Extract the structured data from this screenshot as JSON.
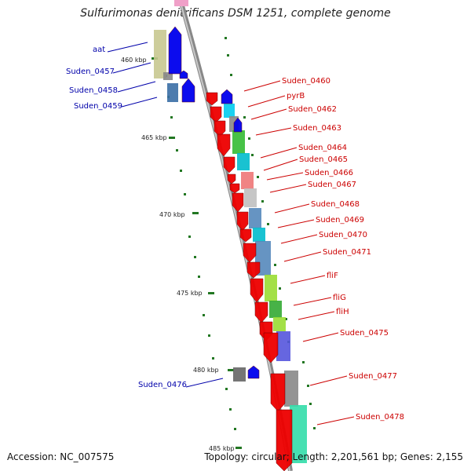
{
  "title": "Sulfurimonas denitrificans DSM 1251, complete genome",
  "footer": {
    "accession": "Accession: NC_007575",
    "summary": "Topology: circular; Length: 2,201,561 bp; Genes: 2,155"
  },
  "colors": {
    "forward_strand_arrow": "#0000ee",
    "reverse_strand_arrow": "#ee0000",
    "forward_label": "#0000aa",
    "reverse_label": "#cc0000",
    "backbone": "#888888",
    "tick": "#227722"
  },
  "scale_labels": [
    "460 kbp",
    "465 kbp",
    "470 kbp",
    "475 kbp",
    "480 kbp",
    "485 kbp"
  ],
  "left_genes": [
    "aat",
    "Suden_0457",
    "Suden_0458",
    "Suden_0459",
    "Suden_0476"
  ],
  "right_genes": [
    "Suden_0460",
    "pyrB",
    "Suden_0462",
    "Suden_0463",
    "Suden_0464",
    "Suden_0465",
    "Suden_0466",
    "Suden_0467",
    "Suden_0468",
    "Suden_0469",
    "Suden_0470",
    "Suden_0471",
    "fliF",
    "fliG",
    "fliH",
    "Suden_0475",
    "Suden_0477",
    "Suden_0478"
  ]
}
